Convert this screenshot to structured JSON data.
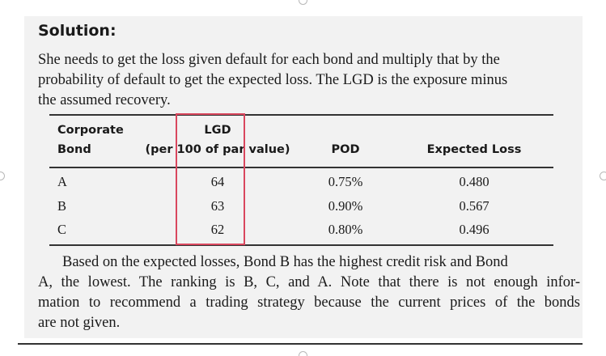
{
  "solution": {
    "heading": "Solution:",
    "intro_lines": [
      "She needs to get the loss given default for each bond and multiply that by the",
      "probability of default to get the expected loss. The LGD is the exposure minus",
      "the assumed recovery."
    ],
    "table": {
      "headers": {
        "bond_line1": "Corporate",
        "bond_line2": "Bond",
        "lgd_line1": "LGD",
        "lgd_line2": "(per 100 of par value)",
        "pod": "POD",
        "expected_loss": "Expected Loss"
      },
      "rows": [
        {
          "bond": "A",
          "lgd": "64",
          "pod": "0.75%",
          "expected_loss": "0.480"
        },
        {
          "bond": "B",
          "lgd": "63",
          "pod": "0.90%",
          "expected_loss": "0.567"
        },
        {
          "bond": "C",
          "lgd": "62",
          "pod": "0.80%",
          "expected_loss": "0.496"
        }
      ]
    },
    "conclusion_lines": [
      "Based on the expected losses, Bond B has the highest credit risk and Bond",
      "A, the lowest. The ranking is B, C, and A. Note that there is not enough infor-",
      "mation to recommend a trading strategy because the current prices of the bonds",
      "are not given."
    ]
  },
  "colors": {
    "panel_background": "#f2f2f2",
    "highlight_border": "#d9475e",
    "rule": "#333333",
    "text": "#1a1a1a"
  }
}
